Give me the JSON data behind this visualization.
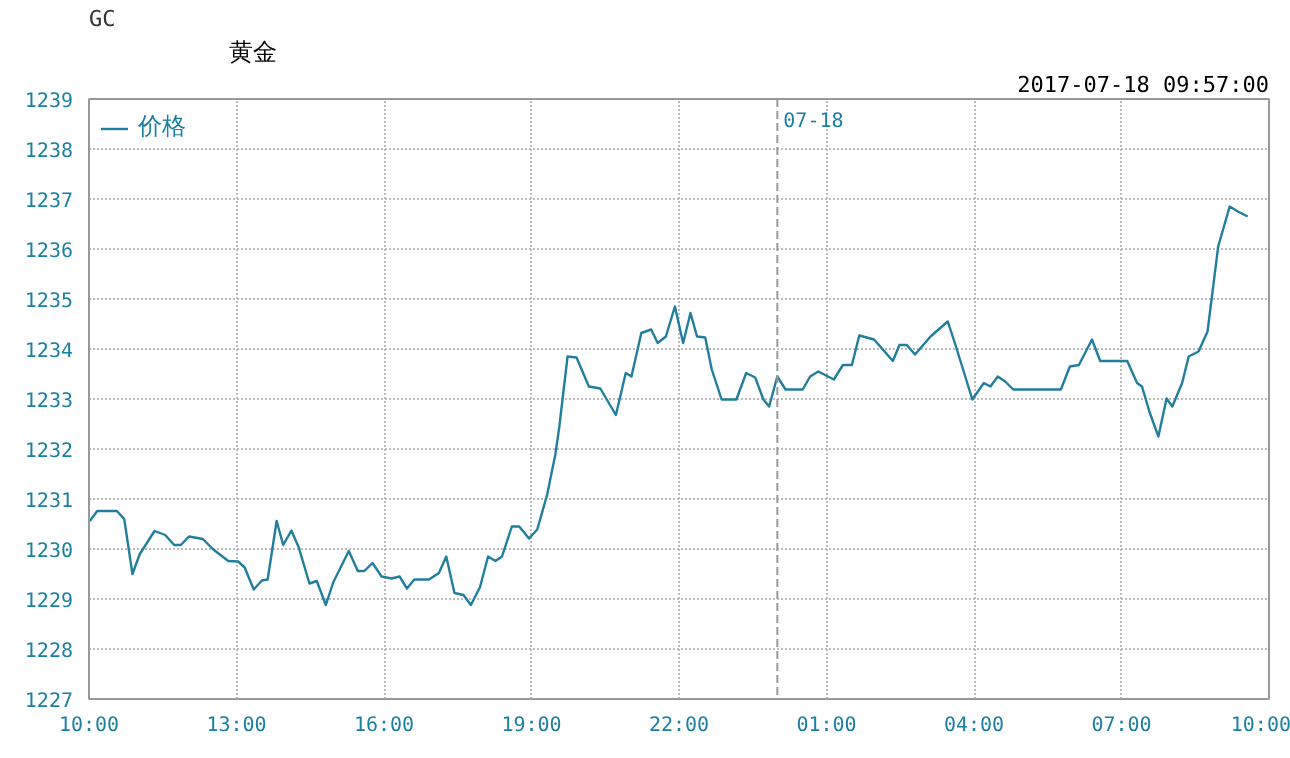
{
  "chart_data": {
    "type": "line",
    "title": "GC",
    "subtitle": "黄金",
    "annotations": [
      "2017-07-18 09:57:00"
    ],
    "x": [
      "2017-07-17T10:01",
      "2017-07-17T10:10",
      "2017-07-17T10:34",
      "2017-07-17T10:43",
      "2017-07-17T10:53",
      "2017-07-17T11:02",
      "2017-07-17T11:20",
      "2017-07-17T11:33",
      "2017-07-17T11:44",
      "2017-07-17T11:52",
      "2017-07-17T12:02",
      "2017-07-17T12:19",
      "2017-07-17T12:31",
      "2017-07-17T12:50",
      "2017-07-17T13:02",
      "2017-07-17T13:10",
      "2017-07-17T13:21",
      "2017-07-17T13:31",
      "2017-07-17T13:38",
      "2017-07-17T13:49",
      "2017-07-17T13:57",
      "2017-07-17T14:07",
      "2017-07-17T14:16",
      "2017-07-17T14:29",
      "2017-07-17T14:38",
      "2017-07-17T14:49",
      "2017-07-17T14:58",
      "2017-07-17T15:17",
      "2017-07-17T15:28",
      "2017-07-17T15:36",
      "2017-07-17T15:46",
      "2017-07-17T15:57",
      "2017-07-17T16:09",
      "2017-07-17T16:19",
      "2017-07-17T16:28",
      "2017-07-17T16:37",
      "2017-07-17T16:55",
      "2017-07-17T17:07",
      "2017-07-17T17:16",
      "2017-07-17T17:26",
      "2017-07-17T17:37",
      "2017-07-17T17:46",
      "2017-07-17T17:57",
      "2017-07-17T18:07",
      "2017-07-17T18:16",
      "2017-07-17T18:24",
      "2017-07-17T18:36",
      "2017-07-17T18:45",
      "2017-07-17T18:57",
      "2017-07-17T19:07",
      "2017-07-17T19:19",
      "2017-07-17T19:29",
      "2017-07-17T19:34",
      "2017-07-17T19:44",
      "2017-07-17T19:55",
      "2017-07-17T20:10",
      "2017-07-17T20:24",
      "2017-07-17T20:43",
      "2017-07-17T20:55",
      "2017-07-17T21:02",
      "2017-07-17T21:14",
      "2017-07-17T21:26",
      "2017-07-17T21:34",
      "2017-07-17T21:44",
      "2017-07-17T21:55",
      "2017-07-17T22:05",
      "2017-07-17T22:14",
      "2017-07-17T22:22",
      "2017-07-17T22:32",
      "2017-07-17T22:40",
      "2017-07-17T22:52",
      "2017-07-17T23:10",
      "2017-07-17T23:22",
      "2017-07-17T23:33",
      "2017-07-17T23:43",
      "2017-07-17T23:50",
      "2017-07-18T00:00",
      "2017-07-18T00:10",
      "2017-07-18T00:31",
      "2017-07-18T00:40",
      "2017-07-18T00:50",
      "2017-07-18T01:09",
      "2017-07-18T01:20",
      "2017-07-18T01:31",
      "2017-07-18T01:40",
      "2017-07-18T01:58",
      "2017-07-18T02:21",
      "2017-07-18T02:29",
      "2017-07-18T02:38",
      "2017-07-18T02:48",
      "2017-07-18T03:07",
      "2017-07-18T03:28",
      "2017-07-18T03:38",
      "2017-07-18T03:58",
      "2017-07-18T04:12",
      "2017-07-18T04:20",
      "2017-07-18T04:29",
      "2017-07-18T04:38",
      "2017-07-18T04:48",
      "2017-07-18T05:46",
      "2017-07-18T05:57",
      "2017-07-18T06:08",
      "2017-07-18T06:24",
      "2017-07-18T06:34",
      "2017-07-18T07:07",
      "2017-07-18T07:19",
      "2017-07-18T07:25",
      "2017-07-18T07:34",
      "2017-07-18T07:45",
      "2017-07-18T07:55",
      "2017-07-18T08:02",
      "2017-07-18T08:14",
      "2017-07-18T08:22",
      "2017-07-18T08:34",
      "2017-07-18T08:45",
      "2017-07-18T08:58",
      "2017-07-18T09:12",
      "2017-07-18T09:22",
      "2017-07-18T09:34"
    ],
    "series": [
      {
        "name": "价格",
        "color": "#217e9c",
        "values": [
          1230.56,
          1230.76,
          1230.76,
          1230.6,
          1229.5,
          1229.9,
          1230.36,
          1230.28,
          1230.08,
          1230.08,
          1230.25,
          1230.2,
          1230.0,
          1229.76,
          1229.75,
          1229.63,
          1229.19,
          1229.37,
          1229.39,
          1230.56,
          1230.08,
          1230.37,
          1230.03,
          1229.31,
          1229.36,
          1228.88,
          1229.33,
          1229.96,
          1229.56,
          1229.56,
          1229.72,
          1229.45,
          1229.41,
          1229.45,
          1229.21,
          1229.39,
          1229.39,
          1229.52,
          1229.85,
          1229.12,
          1229.08,
          1228.88,
          1229.23,
          1229.85,
          1229.76,
          1229.85,
          1230.45,
          1230.45,
          1230.21,
          1230.39,
          1231.08,
          1231.88,
          1232.45,
          1233.85,
          1233.83,
          1233.25,
          1233.21,
          1232.68,
          1233.52,
          1233.45,
          1234.32,
          1234.39,
          1234.12,
          1234.25,
          1234.85,
          1234.12,
          1234.72,
          1234.25,
          1234.23,
          1233.59,
          1232.99,
          1232.99,
          1233.52,
          1233.43,
          1232.99,
          1232.85,
          1233.45,
          1233.19,
          1233.19,
          1233.45,
          1233.55,
          1233.39,
          1233.68,
          1233.68,
          1234.27,
          1234.19,
          1233.76,
          1234.08,
          1234.08,
          1233.89,
          1234.25,
          1234.55,
          1234.05,
          1232.99,
          1233.32,
          1233.25,
          1233.45,
          1233.35,
          1233.19,
          1233.19,
          1233.65,
          1233.68,
          1234.19,
          1233.76,
          1233.76,
          1233.32,
          1233.25,
          1232.75,
          1232.25,
          1233.01,
          1232.85,
          1233.32,
          1233.85,
          1233.95,
          1234.35,
          1236.05,
          1236.85,
          1236.75,
          1236.65
        ]
      }
    ],
    "xlim": [
      "2017-07-17T10:00",
      "2017-07-18T10:00"
    ],
    "xticks": [
      {
        "value": "2017-07-17T10:00",
        "label": "10:00"
      },
      {
        "value": "2017-07-17T13:00",
        "label": "13:00"
      },
      {
        "value": "2017-07-17T16:00",
        "label": "16:00"
      },
      {
        "value": "2017-07-17T19:00",
        "label": "19:00"
      },
      {
        "value": "2017-07-17T22:00",
        "label": "22:00"
      },
      {
        "value": "2017-07-18T01:00",
        "label": "01:00"
      },
      {
        "value": "2017-07-18T04:00",
        "label": "04:00"
      },
      {
        "value": "2017-07-18T07:00",
        "label": "07:00"
      },
      {
        "value": "2017-07-18T10:00",
        "label": "10:00"
      }
    ],
    "ylim": [
      1227,
      1239
    ],
    "yticks": [
      1227,
      1228,
      1229,
      1230,
      1231,
      1232,
      1233,
      1234,
      1235,
      1236,
      1237,
      1238,
      1239
    ],
    "ref_lines": [
      {
        "axis": "x",
        "value": "2017-07-18T00:00",
        "label": "07-18",
        "color": "#999999",
        "line_style": "dashed"
      }
    ],
    "grid": true,
    "legend": "top",
    "marker": "none",
    "line_style": "solid"
  }
}
